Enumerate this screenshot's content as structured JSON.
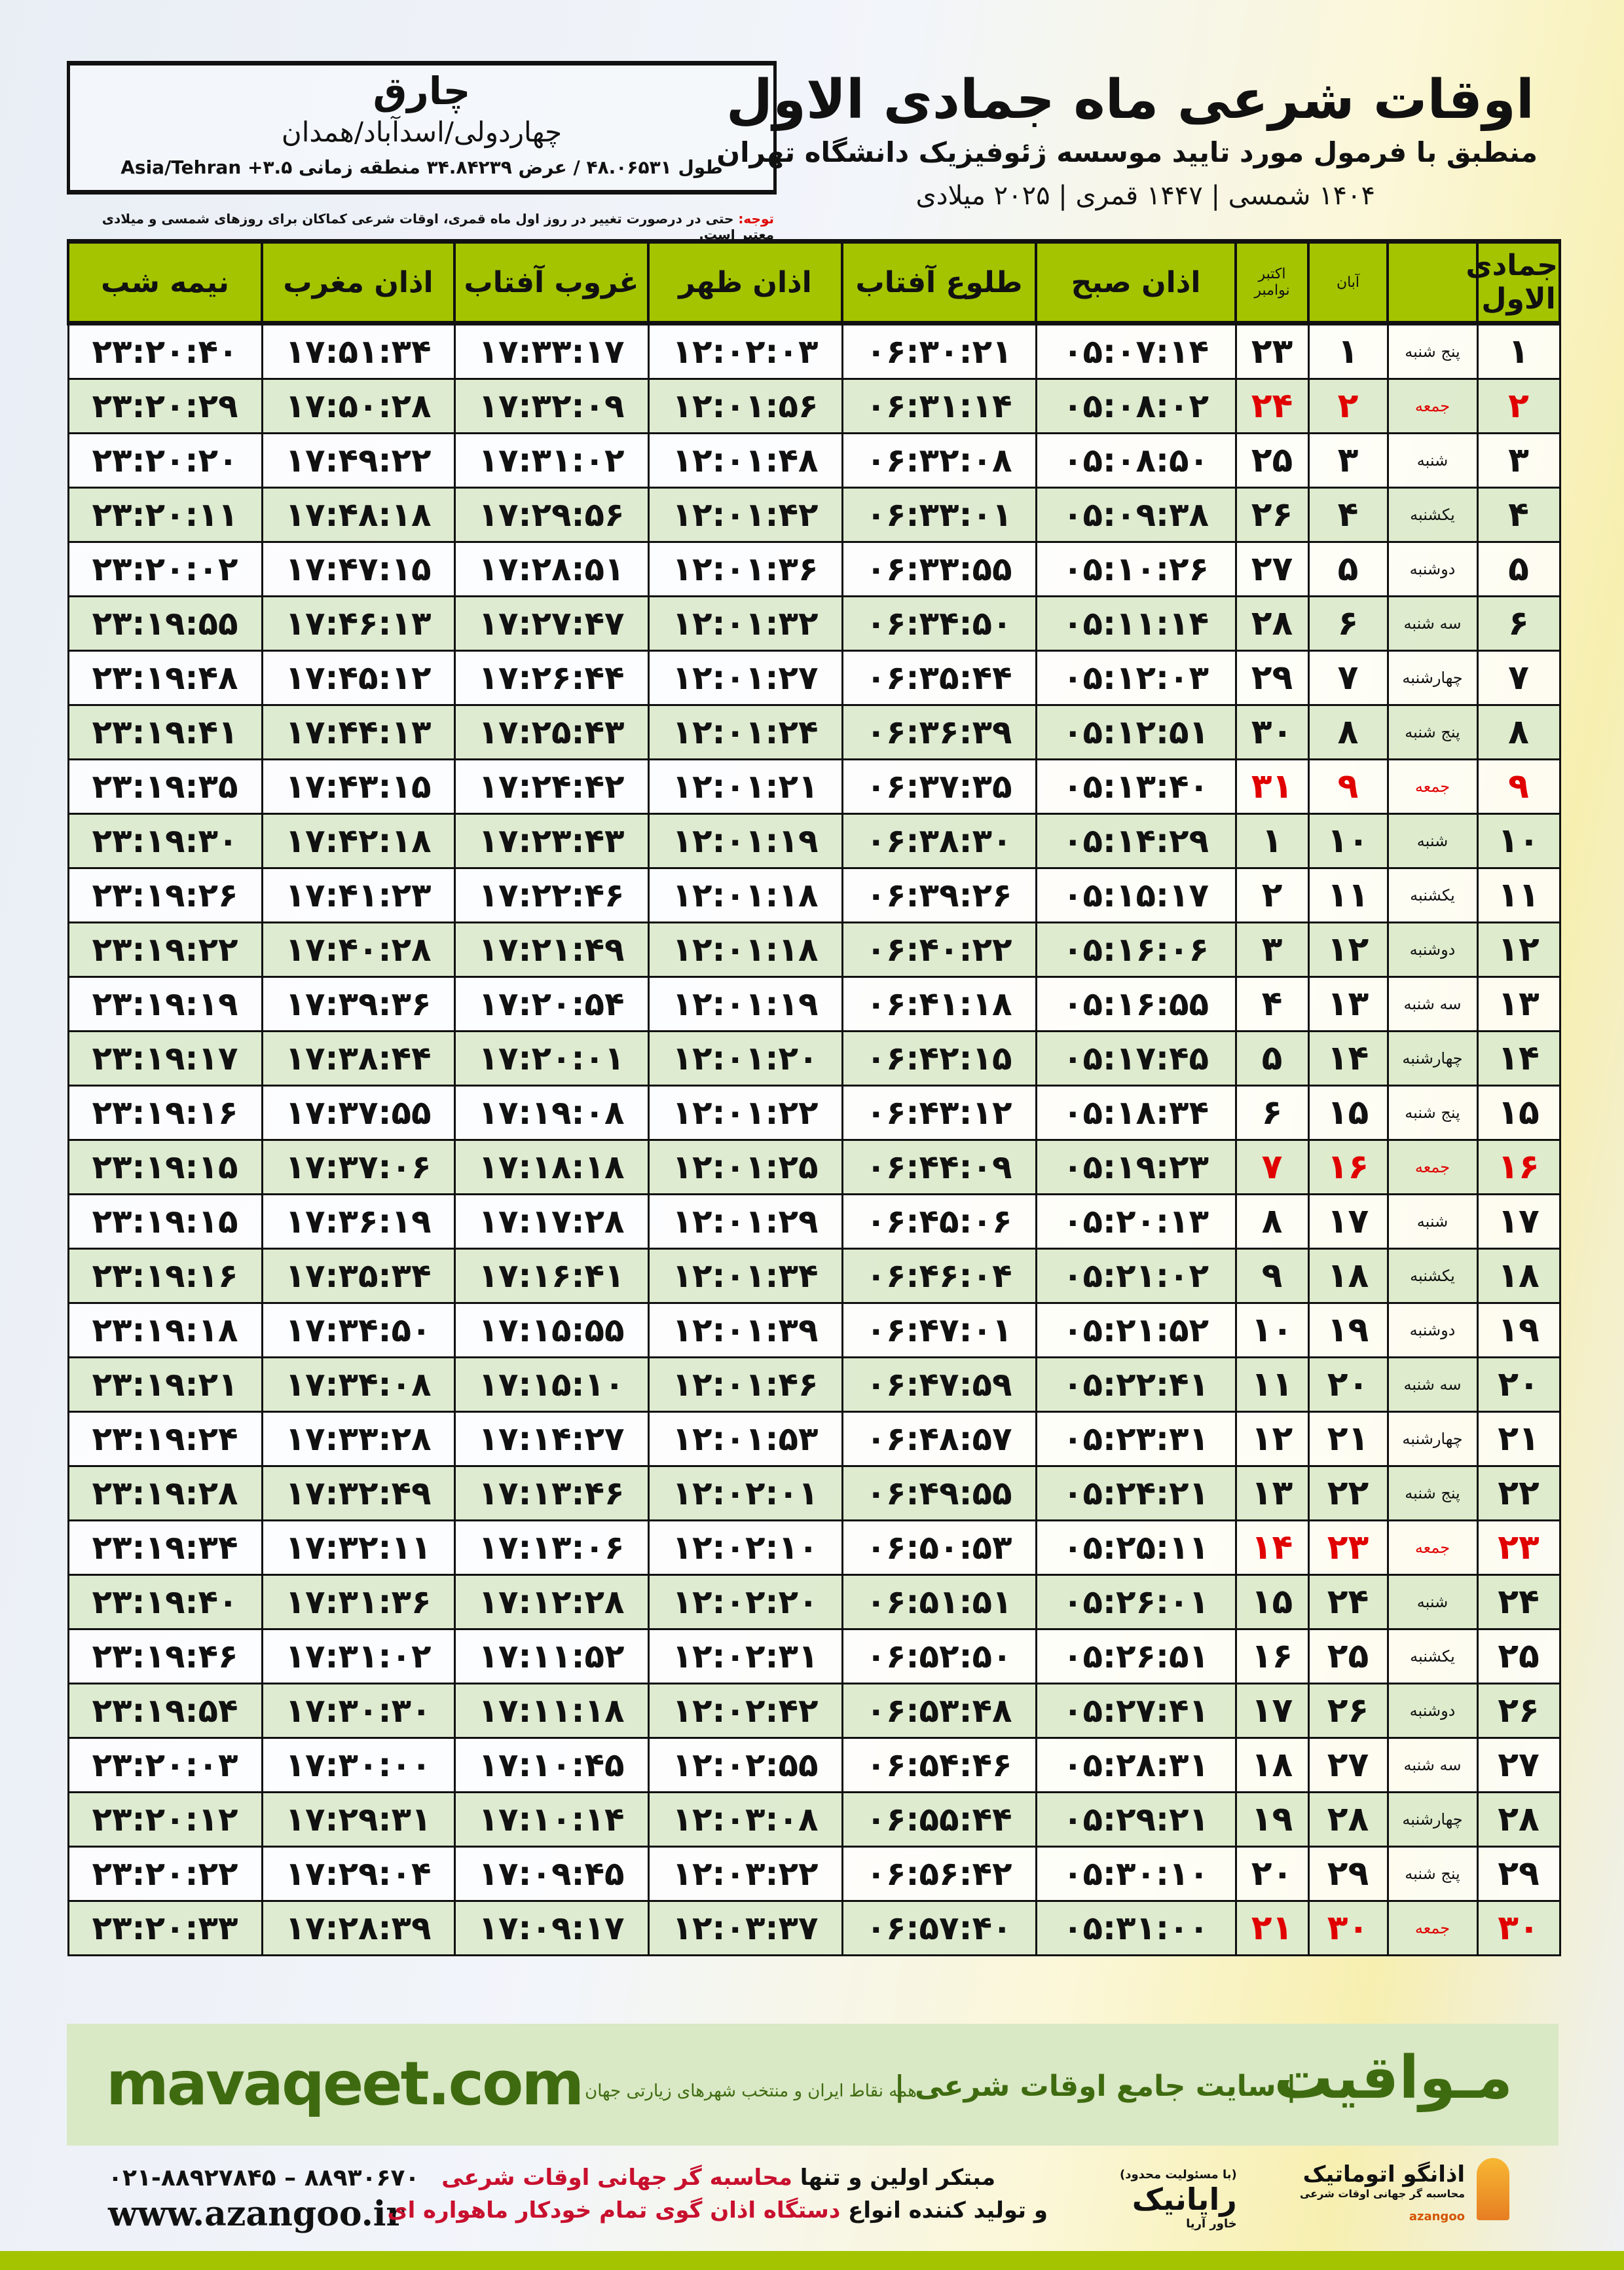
{
  "location": {
    "name": "چارق",
    "region": "چهاردولی/اسدآباد/همدان",
    "coords": "طول ۴۸.۰۶۵۳۱ / عرض ۳۴.۸۴۲۳۹ منطقه زمانی ۳.۵+ Asia/Tehran"
  },
  "header": {
    "title": "اوقات شرعی ماه جمادی الاول",
    "subtitle": "منطبق با فرمول مورد تایید موسسه ژئوفیزیک دانشگاه تهران",
    "years": "۱۴۰۴ شمسی | ۱۴۴۷ قمری | ۲۰۲۵ میلادی"
  },
  "note": {
    "label": "توجه:",
    "text": " حتی در درصورت تغییر در روز اول ماه قمری، اوقات شرعی کماکان برای روزهای شمسی و میلادی معتبر است."
  },
  "table": {
    "headers": [
      "جمادی الاول",
      "",
      "آبان",
      "اکتبر\nنوامبر",
      "اذان صبح",
      "طلوع آفتاب",
      "اذان ظهر",
      "غروب آفتاب",
      "اذان مغرب",
      "نیمه شب"
    ],
    "highlight_color": "#e00000",
    "header_color": "#a4c400",
    "rows": [
      [
        "۱",
        "پنج شنبه",
        "۱",
        "۲۳",
        "۰۵:۰۷:۱۴",
        "۰۶:۳۰:۲۱",
        "۱۲:۰۲:۰۳",
        "۱۷:۳۳:۱۷",
        "۱۷:۵۱:۳۴",
        "۲۳:۲۰:۴۰"
      ],
      [
        "۲",
        "جمعه",
        "۲",
        "۲۴",
        "۰۵:۰۸:۰۲",
        "۰۶:۳۱:۱۴",
        "۱۲:۰۱:۵۶",
        "۱۷:۳۲:۰۹",
        "۱۷:۵۰:۲۸",
        "۲۳:۲۰:۲۹"
      ],
      [
        "۳",
        "شنبه",
        "۳",
        "۲۵",
        "۰۵:۰۸:۵۰",
        "۰۶:۳۲:۰۸",
        "۱۲:۰۱:۴۸",
        "۱۷:۳۱:۰۲",
        "۱۷:۴۹:۲۲",
        "۲۳:۲۰:۲۰"
      ],
      [
        "۴",
        "یکشنبه",
        "۴",
        "۲۶",
        "۰۵:۰۹:۳۸",
        "۰۶:۳۳:۰۱",
        "۱۲:۰۱:۴۲",
        "۱۷:۲۹:۵۶",
        "۱۷:۴۸:۱۸",
        "۲۳:۲۰:۱۱"
      ],
      [
        "۵",
        "دوشنبه",
        "۵",
        "۲۷",
        "۰۵:۱۰:۲۶",
        "۰۶:۳۳:۵۵",
        "۱۲:۰۱:۳۶",
        "۱۷:۲۸:۵۱",
        "۱۷:۴۷:۱۵",
        "۲۳:۲۰:۰۲"
      ],
      [
        "۶",
        "سه شنبه",
        "۶",
        "۲۸",
        "۰۵:۱۱:۱۴",
        "۰۶:۳۴:۵۰",
        "۱۲:۰۱:۳۲",
        "۱۷:۲۷:۴۷",
        "۱۷:۴۶:۱۳",
        "۲۳:۱۹:۵۵"
      ],
      [
        "۷",
        "چهارشنبه",
        "۷",
        "۲۹",
        "۰۵:۱۲:۰۳",
        "۰۶:۳۵:۴۴",
        "۱۲:۰۱:۲۷",
        "۱۷:۲۶:۴۴",
        "۱۷:۴۵:۱۲",
        "۲۳:۱۹:۴۸"
      ],
      [
        "۸",
        "پنج شنبه",
        "۸",
        "۳۰",
        "۰۵:۱۲:۵۱",
        "۰۶:۳۶:۳۹",
        "۱۲:۰۱:۲۴",
        "۱۷:۲۵:۴۳",
        "۱۷:۴۴:۱۳",
        "۲۳:۱۹:۴۱"
      ],
      [
        "۹",
        "جمعه",
        "۹",
        "۳۱",
        "۰۵:۱۳:۴۰",
        "۰۶:۳۷:۳۵",
        "۱۲:۰۱:۲۱",
        "۱۷:۲۴:۴۲",
        "۱۷:۴۳:۱۵",
        "۲۳:۱۹:۳۵"
      ],
      [
        "۱۰",
        "شنبه",
        "۱۰",
        "۱",
        "۰۵:۱۴:۲۹",
        "۰۶:۳۸:۳۰",
        "۱۲:۰۱:۱۹",
        "۱۷:۲۳:۴۳",
        "۱۷:۴۲:۱۸",
        "۲۳:۱۹:۳۰"
      ],
      [
        "۱۱",
        "یکشنبه",
        "۱۱",
        "۲",
        "۰۵:۱۵:۱۷",
        "۰۶:۳۹:۲۶",
        "۱۲:۰۱:۱۸",
        "۱۷:۲۲:۴۶",
        "۱۷:۴۱:۲۳",
        "۲۳:۱۹:۲۶"
      ],
      [
        "۱۲",
        "دوشنبه",
        "۱۲",
        "۳",
        "۰۵:۱۶:۰۶",
        "۰۶:۴۰:۲۲",
        "۱۲:۰۱:۱۸",
        "۱۷:۲۱:۴۹",
        "۱۷:۴۰:۲۸",
        "۲۳:۱۹:۲۲"
      ],
      [
        "۱۳",
        "سه شنبه",
        "۱۳",
        "۴",
        "۰۵:۱۶:۵۵",
        "۰۶:۴۱:۱۸",
        "۱۲:۰۱:۱۹",
        "۱۷:۲۰:۵۴",
        "۱۷:۳۹:۳۶",
        "۲۳:۱۹:۱۹"
      ],
      [
        "۱۴",
        "چهارشنبه",
        "۱۴",
        "۵",
        "۰۵:۱۷:۴۵",
        "۰۶:۴۲:۱۵",
        "۱۲:۰۱:۲۰",
        "۱۷:۲۰:۰۱",
        "۱۷:۳۸:۴۴",
        "۲۳:۱۹:۱۷"
      ],
      [
        "۱۵",
        "پنج شنبه",
        "۱۵",
        "۶",
        "۰۵:۱۸:۳۴",
        "۰۶:۴۳:۱۲",
        "۱۲:۰۱:۲۲",
        "۱۷:۱۹:۰۸",
        "۱۷:۳۷:۵۵",
        "۲۳:۱۹:۱۶"
      ],
      [
        "۱۶",
        "جمعه",
        "۱۶",
        "۷",
        "۰۵:۱۹:۲۳",
        "۰۶:۴۴:۰۹",
        "۱۲:۰۱:۲۵",
        "۱۷:۱۸:۱۸",
        "۱۷:۳۷:۰۶",
        "۲۳:۱۹:۱۵"
      ],
      [
        "۱۷",
        "شنبه",
        "۱۷",
        "۸",
        "۰۵:۲۰:۱۳",
        "۰۶:۴۵:۰۶",
        "۱۲:۰۱:۲۹",
        "۱۷:۱۷:۲۸",
        "۱۷:۳۶:۱۹",
        "۲۳:۱۹:۱۵"
      ],
      [
        "۱۸",
        "یکشنبه",
        "۱۸",
        "۹",
        "۰۵:۲۱:۰۲",
        "۰۶:۴۶:۰۴",
        "۱۲:۰۱:۳۴",
        "۱۷:۱۶:۴۱",
        "۱۷:۳۵:۳۴",
        "۲۳:۱۹:۱۶"
      ],
      [
        "۱۹",
        "دوشنبه",
        "۱۹",
        "۱۰",
        "۰۵:۲۱:۵۲",
        "۰۶:۴۷:۰۱",
        "۱۲:۰۱:۳۹",
        "۱۷:۱۵:۵۵",
        "۱۷:۳۴:۵۰",
        "۲۳:۱۹:۱۸"
      ],
      [
        "۲۰",
        "سه شنبه",
        "۲۰",
        "۱۱",
        "۰۵:۲۲:۴۱",
        "۰۶:۴۷:۵۹",
        "۱۲:۰۱:۴۶",
        "۱۷:۱۵:۱۰",
        "۱۷:۳۴:۰۸",
        "۲۳:۱۹:۲۱"
      ],
      [
        "۲۱",
        "چهارشنبه",
        "۲۱",
        "۱۲",
        "۰۵:۲۳:۳۱",
        "۰۶:۴۸:۵۷",
        "۱۲:۰۱:۵۳",
        "۱۷:۱۴:۲۷",
        "۱۷:۳۳:۲۸",
        "۲۳:۱۹:۲۴"
      ],
      [
        "۲۲",
        "پنج شنبه",
        "۲۲",
        "۱۳",
        "۰۵:۲۴:۲۱",
        "۰۶:۴۹:۵۵",
        "۱۲:۰۲:۰۱",
        "۱۷:۱۳:۴۶",
        "۱۷:۳۲:۴۹",
        "۲۳:۱۹:۲۸"
      ],
      [
        "۲۳",
        "جمعه",
        "۲۳",
        "۱۴",
        "۰۵:۲۵:۱۱",
        "۰۶:۵۰:۵۳",
        "۱۲:۰۲:۱۰",
        "۱۷:۱۳:۰۶",
        "۱۷:۳۲:۱۱",
        "۲۳:۱۹:۳۴"
      ],
      [
        "۲۴",
        "شنبه",
        "۲۴",
        "۱۵",
        "۰۵:۲۶:۰۱",
        "۰۶:۵۱:۵۱",
        "۱۲:۰۲:۲۰",
        "۱۷:۱۲:۲۸",
        "۱۷:۳۱:۳۶",
        "۲۳:۱۹:۴۰"
      ],
      [
        "۲۵",
        "یکشنبه",
        "۲۵",
        "۱۶",
        "۰۵:۲۶:۵۱",
        "۰۶:۵۲:۵۰",
        "۱۲:۰۲:۳۱",
        "۱۷:۱۱:۵۲",
        "۱۷:۳۱:۰۲",
        "۲۳:۱۹:۴۶"
      ],
      [
        "۲۶",
        "دوشنبه",
        "۲۶",
        "۱۷",
        "۰۵:۲۷:۴۱",
        "۰۶:۵۳:۴۸",
        "۱۲:۰۲:۴۲",
        "۱۷:۱۱:۱۸",
        "۱۷:۳۰:۳۰",
        "۲۳:۱۹:۵۴"
      ],
      [
        "۲۷",
        "سه شنبه",
        "۲۷",
        "۱۸",
        "۰۵:۲۸:۳۱",
        "۰۶:۵۴:۴۶",
        "۱۲:۰۲:۵۵",
        "۱۷:۱۰:۴۵",
        "۱۷:۳۰:۰۰",
        "۲۳:۲۰:۰۳"
      ],
      [
        "۲۸",
        "چهارشنبه",
        "۲۸",
        "۱۹",
        "۰۵:۲۹:۲۱",
        "۰۶:۵۵:۴۴",
        "۱۲:۰۳:۰۸",
        "۱۷:۱۰:۱۴",
        "۱۷:۲۹:۳۱",
        "۲۳:۲۰:۱۲"
      ],
      [
        "۲۹",
        "پنج شنبه",
        "۲۹",
        "۲۰",
        "۰۵:۳۰:۱۰",
        "۰۶:۵۶:۴۲",
        "۱۲:۰۳:۲۲",
        "۱۷:۰۹:۴۵",
        "۱۷:۲۹:۰۴",
        "۲۳:۲۰:۲۲"
      ],
      [
        "۳۰",
        "جمعه",
        "۳۰",
        "۲۱",
        "۰۵:۳۱:۰۰",
        "۰۶:۵۷:۴۰",
        "۱۲:۰۳:۳۷",
        "۱۷:۰۹:۱۷",
        "۱۷:۲۸:۳۹",
        "۲۳:۲۰:۳۳"
      ]
    ]
  },
  "promo": {
    "domain": "mavaqeet.com",
    "brand": "مـواقیت",
    "site": "| سایت جامع اوقات شرعی |",
    "tagline": "همه نقاط ایران و منتخب شهرهای زیارتی جهان"
  },
  "footer": {
    "phones": "۰۲۱-۸۸۹۲۷۸۴۵ – ۸۸۹۳۰۶۷۰",
    "website": "www.azangoo.ir",
    "line1_a": "مبتکر اولین و تنها ",
    "line1_b": "محاسبه گر جهانی اوقات شرعی",
    "line2_a": "و تولید کننده انواع ",
    "line2_b": "دستگاه اذان گوی تمام خودکار ماهواره ای",
    "rayanik_small": "(با مسئولیت محدود)",
    "rayanik": "رایانیک",
    "rayanik_sub": "خاور آریا",
    "azangoo_logo": "اذانگو اتوماتیک",
    "azangoo_tag": "محاسبه گر جهانی اوقات شرعی",
    "azangoo_en": "azangoo"
  }
}
